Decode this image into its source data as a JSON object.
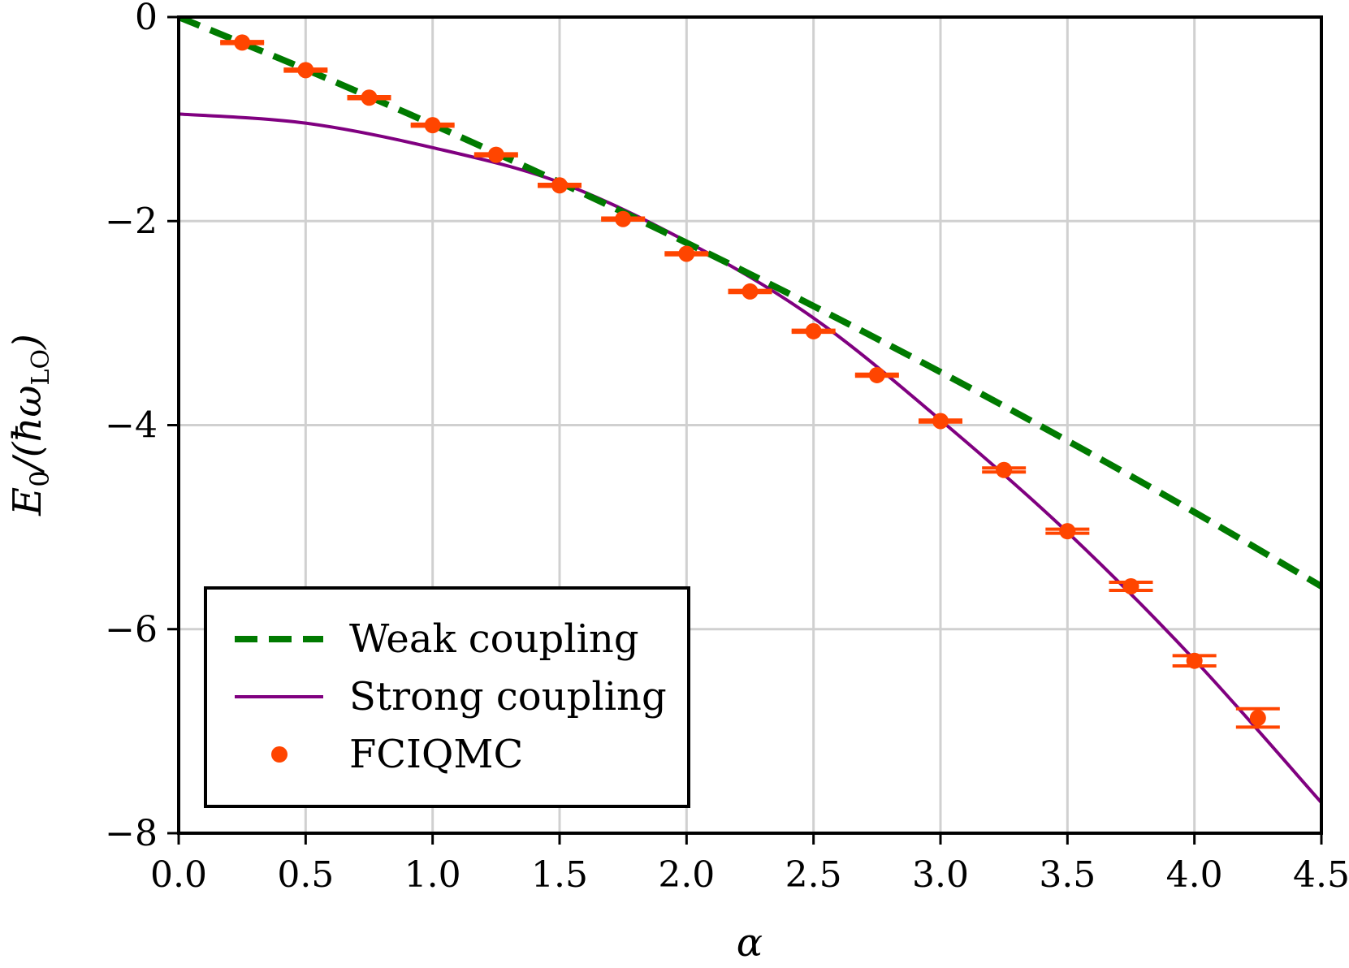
{
  "chart_data": {
    "type": "line",
    "title": "",
    "xlabel": "α",
    "ylabel_parts": {
      "main": "E",
      "sub0": "0",
      "mid": "/(ħω",
      "sub1": "LO",
      "end": ")"
    },
    "xlim": [
      0,
      4.5
    ],
    "ylim": [
      -8,
      0
    ],
    "xticks": [
      0,
      0.5,
      1,
      1.5,
      2,
      2.5,
      3,
      3.5,
      4,
      4.5
    ],
    "xtick_labels": [
      "0.0",
      "0.5",
      "1.0",
      "1.5",
      "2.0",
      "2.5",
      "3.0",
      "3.5",
      "4.0",
      "4.5"
    ],
    "yticks": [
      0,
      -2,
      -4,
      -6,
      -8
    ],
    "ytick_labels": [
      "0",
      "−2",
      "−4",
      "−6",
      "−8"
    ],
    "grid": true,
    "legend_position": "lower-left",
    "series": [
      {
        "name": "Weak coupling",
        "style": "dashed",
        "color": "#007a00",
        "x": [
          0,
          0.5,
          1.0,
          1.5,
          2.0,
          2.5,
          3.0,
          3.5,
          4.0,
          4.5
        ],
        "y": [
          0,
          -0.513,
          -1.053,
          -1.62,
          -2.213,
          -2.833,
          -3.48,
          -4.153,
          -4.853,
          -5.58
        ]
      },
      {
        "name": "Strong coupling",
        "style": "solid",
        "color": "#800080",
        "x": [
          0,
          0.5,
          1.0,
          1.5,
          2.0,
          2.5,
          3.0,
          3.5,
          4.0,
          4.5
        ],
        "y": [
          -0.95,
          -1.04,
          -1.28,
          -1.62,
          -2.2,
          -2.95,
          -3.95,
          -5.05,
          -6.3,
          -7.7
        ]
      },
      {
        "name": "FCIQMC",
        "style": "markers",
        "color": "#ff4500",
        "x": [
          0.25,
          0.5,
          0.75,
          1.0,
          1.25,
          1.5,
          1.75,
          2.0,
          2.25,
          2.5,
          2.75,
          3.0,
          3.25,
          3.5,
          3.75,
          4.0,
          4.25
        ],
        "y": [
          -0.25,
          -0.52,
          -0.79,
          -1.06,
          -1.35,
          -1.65,
          -1.98,
          -2.32,
          -2.69,
          -3.08,
          -3.51,
          -3.96,
          -4.44,
          -5.04,
          -5.58,
          -6.31,
          -6.87
        ],
        "yerr": [
          0.01,
          0.01,
          0.01,
          0.01,
          0.01,
          0.01,
          0.01,
          0.01,
          0.01,
          0.01,
          0.01,
          0.01,
          0.02,
          0.02,
          0.04,
          0.05,
          0.09
        ]
      }
    ]
  }
}
